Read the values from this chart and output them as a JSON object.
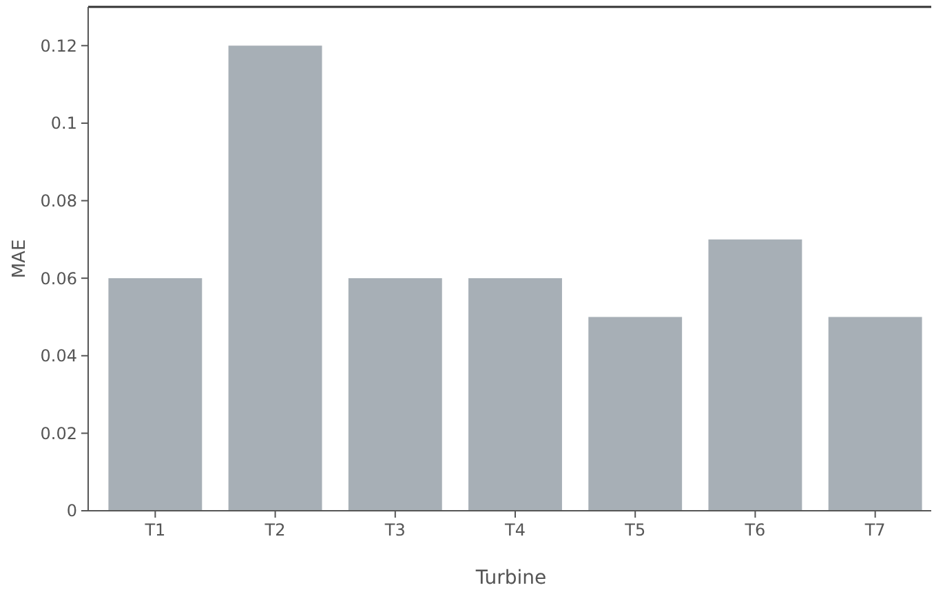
{
  "chart_data": {
    "type": "bar",
    "xlabel": "Turbine",
    "ylabel": "MAE",
    "categories": [
      "T1",
      "T2",
      "T3",
      "T4",
      "T5",
      "T6",
      "T7"
    ],
    "values": [
      0.06,
      0.12,
      0.06,
      0.06,
      0.05,
      0.07,
      0.05
    ],
    "color": "#a7afb6",
    "ylim": [
      0,
      0.13
    ],
    "yticks": [
      0,
      0.02,
      0.04,
      0.06,
      0.08,
      0.1,
      0.12
    ],
    "grid": false
  }
}
